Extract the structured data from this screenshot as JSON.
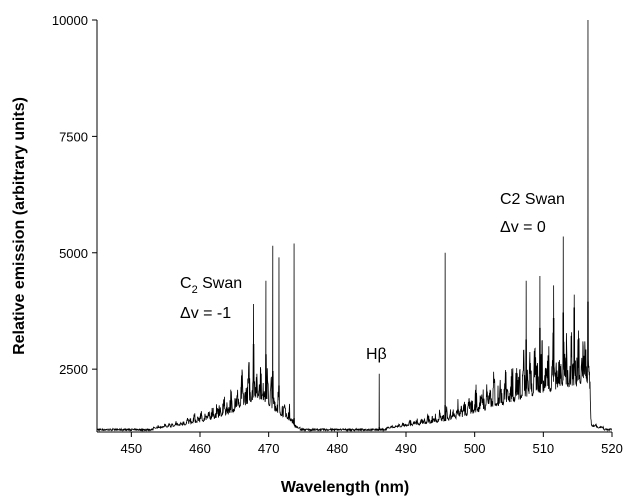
{
  "chart_data": {
    "type": "line",
    "title": "",
    "xlabel": "Wavelength (nm)",
    "ylabel": "Relative emission (arbitrary units)",
    "xlim": [
      445,
      520
    ],
    "ylim": [
      1150,
      10000
    ],
    "x_ticks": [
      450,
      460,
      470,
      480,
      490,
      500,
      510,
      520
    ],
    "y_ticks": [
      2500,
      5000,
      7500,
      10000
    ],
    "grid": false,
    "legend": "none",
    "line_color": "#000000",
    "envelope": [
      [
        445,
        1200
      ],
      [
        448,
        1200
      ],
      [
        450,
        1230
      ],
      [
        452,
        1250
      ],
      [
        454,
        1300
      ],
      [
        456,
        1380
      ],
      [
        458,
        1500
      ],
      [
        460,
        1650
      ],
      [
        462,
        1850
      ],
      [
        464,
        2100
      ],
      [
        466,
        2500
      ],
      [
        467,
        2800
      ],
      [
        468,
        3100
      ],
      [
        469,
        3000
      ],
      [
        470,
        2700
      ],
      [
        471,
        2300
      ],
      [
        472,
        2000
      ],
      [
        473,
        1800
      ],
      [
        474,
        1300
      ],
      [
        476,
        1230
      ],
      [
        478,
        1220
      ],
      [
        480,
        1230
      ],
      [
        482,
        1220
      ],
      [
        484,
        1240
      ],
      [
        486,
        1250
      ],
      [
        488,
        1300
      ],
      [
        490,
        1400
      ],
      [
        492,
        1500
      ],
      [
        494,
        1600
      ],
      [
        496,
        1750
      ],
      [
        498,
        1950
      ],
      [
        500,
        2200
      ],
      [
        502,
        2450
      ],
      [
        504,
        2700
      ],
      [
        506,
        2950
      ],
      [
        508,
        3200
      ],
      [
        510,
        3450
      ],
      [
        512,
        3650
      ],
      [
        514,
        3800
      ],
      [
        516,
        3900
      ],
      [
        516.5,
        3950
      ],
      [
        517,
        1400
      ],
      [
        518,
        1300
      ],
      [
        520,
        1250
      ]
    ],
    "peaks": [
      [
        467.8,
        3900
      ],
      [
        469.6,
        4400
      ],
      [
        470.6,
        5150
      ],
      [
        471.5,
        4900
      ],
      [
        473.7,
        5200
      ],
      [
        486.1,
        2400
      ],
      [
        495.7,
        5000
      ],
      [
        507.5,
        4400
      ],
      [
        509.5,
        4500
      ],
      [
        511.5,
        4300
      ],
      [
        512.9,
        5350
      ],
      [
        514.5,
        4100
      ],
      [
        516.5,
        10000
      ]
    ],
    "annotations": [
      {
        "id": "c2-left",
        "lines": [
          "C",
          "2",
          " Swan",
          "Δv = -1"
        ],
        "x": 461.5,
        "y": 3100
      },
      {
        "id": "hbeta",
        "text": "Hβ",
        "x": 485,
        "y": 2700
      },
      {
        "id": "c2-right",
        "lines": [
          "C2 Swan",
          "Δv = 0"
        ],
        "x": 501.5,
        "y": 5800
      }
    ]
  }
}
